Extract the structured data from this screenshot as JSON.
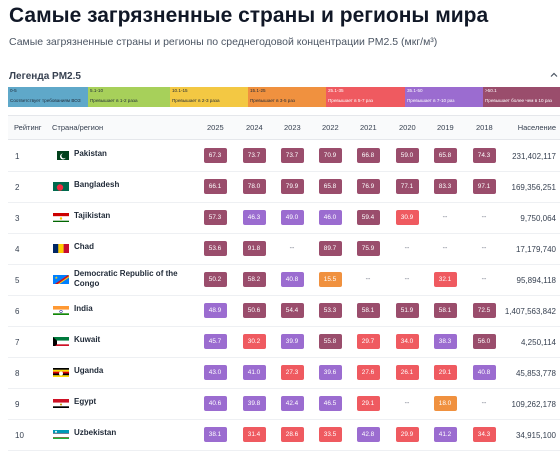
{
  "page": {
    "title": "Самые загрязненные страны и регионы мира",
    "subtitle": "Самые загрязненные страны и регионы по среднегодовой концентрации PM2.5 (мкг/м³)"
  },
  "legend": {
    "title": "Легенда PM2.5",
    "segments": [
      {
        "range": "0-5",
        "desc": "Соответствует требованиям ВОЗ",
        "color": "#5fa8c9",
        "text": "#1f2937"
      },
      {
        "range": "5.1-10",
        "desc": "Превышает в 1-2 раза",
        "color": "#a7d05a",
        "text": "#1f2937"
      },
      {
        "range": "10.1-15",
        "desc": "Превышает в 2-3 раза",
        "color": "#f3c843",
        "text": "#1f2937"
      },
      {
        "range": "15.1-25",
        "desc": "Превышает в 3-5 раз",
        "color": "#f0913f",
        "text": "#1f2937"
      },
      {
        "range": "25.1-35",
        "desc": "Превышает в 5-7 раз",
        "color": "#ef5a60",
        "text": "#ffffff"
      },
      {
        "range": "35.1-50",
        "desc": "Превышает в 7-10 раз",
        "color": "#9b6cd0",
        "text": "#ffffff"
      },
      {
        "range": ">50.1",
        "desc": "Превышает более чем в 10 раз",
        "color": "#9a4d6c",
        "text": "#ffffff"
      }
    ]
  },
  "table": {
    "headers": {
      "rank": "Рейтинг",
      "country": "Страна/регион",
      "years": [
        "2025",
        "2024",
        "2023",
        "2022",
        "2021",
        "2020",
        "2019",
        "2018"
      ],
      "population": "Население"
    },
    "rows": [
      {
        "rank": "1",
        "country": "Pakistan",
        "country2": "",
        "flag": "pakistan",
        "values": [
          "67.3",
          "73.7",
          "73.7",
          "70.9",
          "66.8",
          "59.0",
          "65.8",
          "74.3"
        ],
        "population": "231,402,117"
      },
      {
        "rank": "2",
        "country": "Bangladesh",
        "country2": "",
        "flag": "bangladesh",
        "values": [
          "66.1",
          "78.0",
          "79.9",
          "65.8",
          "76.9",
          "77.1",
          "83.3",
          "97.1"
        ],
        "population": "169,356,251"
      },
      {
        "rank": "3",
        "country": "Tajikistan",
        "country2": "",
        "flag": "tajikistan",
        "values": [
          "57.3",
          "46.3",
          "49.0",
          "46.0",
          "59.4",
          "30.9",
          "--",
          "--"
        ],
        "population": "9,750,064"
      },
      {
        "rank": "4",
        "country": "Chad",
        "country2": "",
        "flag": "chad",
        "values": [
          "53.6",
          "91.8",
          "--",
          "89.7",
          "75.9",
          "--",
          "--",
          "--"
        ],
        "population": "17,179,740"
      },
      {
        "rank": "5",
        "country": "Democratic Republic of the",
        "country2": "Congo",
        "flag": "drc",
        "values": [
          "50.2",
          "58.2",
          "40.8",
          "15.5",
          "--",
          "--",
          "32.1",
          "--"
        ],
        "population": "95,894,118"
      },
      {
        "rank": "6",
        "country": "India",
        "country2": "",
        "flag": "india",
        "values": [
          "48.9",
          "50.6",
          "54.4",
          "53.3",
          "58.1",
          "51.9",
          "58.1",
          "72.5"
        ],
        "population": "1,407,563,842"
      },
      {
        "rank": "7",
        "country": "Kuwait",
        "country2": "",
        "flag": "kuwait",
        "values": [
          "45.7",
          "30.2",
          "39.9",
          "55.8",
          "29.7",
          "34.0",
          "38.3",
          "56.0"
        ],
        "population": "4,250,114"
      },
      {
        "rank": "8",
        "country": "Uganda",
        "country2": "",
        "flag": "uganda",
        "values": [
          "43.0",
          "41.0",
          "27.3",
          "39.6",
          "27.6",
          "26.1",
          "29.1",
          "40.8"
        ],
        "population": "45,853,778"
      },
      {
        "rank": "9",
        "country": "Egypt",
        "country2": "",
        "flag": "egypt",
        "values": [
          "40.6",
          "39.8",
          "42.4",
          "46.5",
          "29.1",
          "--",
          "18.0",
          "--"
        ],
        "population": "109,262,178"
      },
      {
        "rank": "10",
        "country": "Uzbekistan",
        "country2": "",
        "flag": "uzbekistan",
        "values": [
          "38.1",
          "31.4",
          "28.6",
          "33.5",
          "42.8",
          "29.9",
          "41.2",
          "34.3"
        ],
        "population": "34,915,100"
      }
    ]
  }
}
